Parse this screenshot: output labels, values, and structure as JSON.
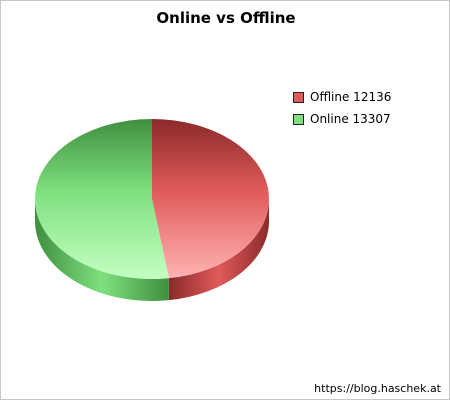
{
  "chart_data": {
    "type": "pie",
    "title": "Online vs Offline",
    "slices": [
      {
        "name": "Offline",
        "value": 12136,
        "legend": "Offline 12136",
        "color": "#e05a5a",
        "light": "#ffb3b3",
        "dark": "#8a2a2a"
      },
      {
        "name": "Online",
        "value": 13307,
        "legend": "Online 13307",
        "color": "#7fe07f",
        "light": "#c3ffc3",
        "dark": "#3f8f3f"
      }
    ],
    "legend_position": "right",
    "three_d": true
  },
  "footer": {
    "credit": "https://blog.haschek.at"
  }
}
